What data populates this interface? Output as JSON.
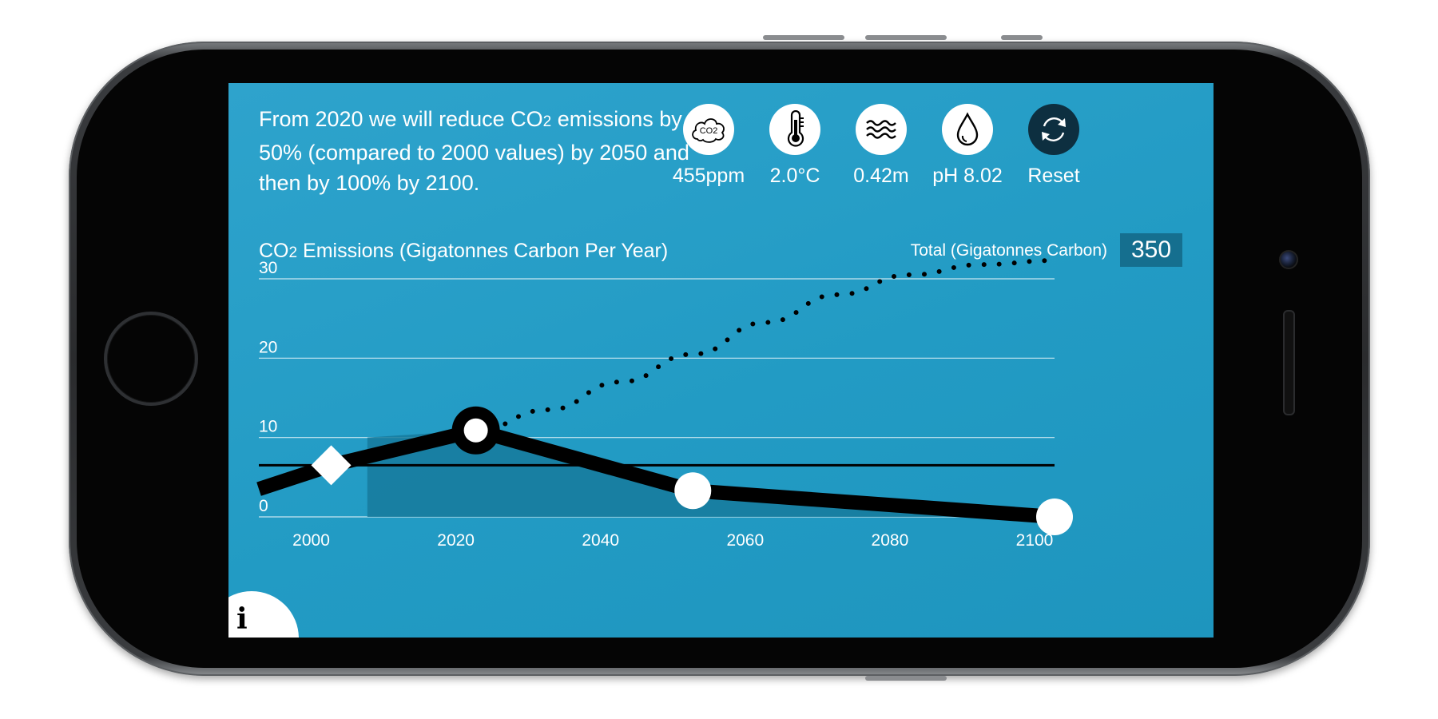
{
  "headline": {
    "part1": "From 2020 we will reduce CO",
    "sub": "2",
    "part2": " emissions by 50% (compared to 2000 values) by 2050 and then by 100% by 2100."
  },
  "indicators": [
    {
      "icon": "co2-cloud-icon",
      "value": "455ppm"
    },
    {
      "icon": "thermometer-icon",
      "value": "2.0°C"
    },
    {
      "icon": "waves-icon",
      "value": "0.42m"
    },
    {
      "icon": "droplet-icon",
      "value": "pH 8.02"
    },
    {
      "icon": "reset-icon",
      "value": "Reset"
    }
  ],
  "co2_icon_text": "CO2",
  "chart_title": {
    "prefix": "CO",
    "sub": "2",
    "rest": " Emissions (Gigatonnes Carbon Per Year)"
  },
  "total": {
    "label": "Total (Gigatonnes Carbon)",
    "value": "350"
  },
  "info_label": "i",
  "colors": {
    "background": "#229bc4",
    "line": "#000000",
    "area": "#167a9c",
    "total_box": "#156f8f"
  },
  "chart_data": {
    "type": "line",
    "title": "CO2 Emissions (Gigatonnes Carbon Per Year)",
    "xlim": [
      1990,
      2100
    ],
    "ylim": [
      0,
      30
    ],
    "xticks": [
      2000,
      2020,
      2040,
      2060,
      2080,
      2100
    ],
    "yticks": [
      0,
      10,
      20,
      30
    ],
    "grid": true,
    "series": [
      {
        "style": "solid-thick",
        "x": [
          1990,
          2000,
          2020,
          2050,
          2100
        ],
        "y": [
          3.5,
          6.5,
          10.9,
          3.3,
          0
        ],
        "markers": [
          {
            "x": 2000,
            "y": 6.5,
            "shape": "diamond"
          },
          {
            "x": 2020,
            "y": 10.9,
            "shape": "ring"
          },
          {
            "x": 2050,
            "y": 3.3,
            "shape": "circle"
          },
          {
            "x": 2100,
            "y": 0,
            "shape": "circle"
          }
        ]
      },
      {
        "style": "dotted",
        "x": [
          2020,
          2030,
          2040,
          2050,
          2060,
          2070,
          2080,
          2090,
          2100
        ],
        "y": [
          10.9,
          13.5,
          17.0,
          20.5,
          24.5,
          28.0,
          30.5,
          31.8,
          32.3
        ]
      },
      {
        "style": "horizontal-reference",
        "y": 6.5
      }
    ],
    "shaded_area": {
      "x_start": 2005,
      "description_points": [
        [
          2005,
          0
        ],
        [
          2005,
          10
        ],
        [
          2020,
          10.9
        ],
        [
          2050,
          3.3
        ],
        [
          2100,
          0
        ]
      ]
    }
  }
}
